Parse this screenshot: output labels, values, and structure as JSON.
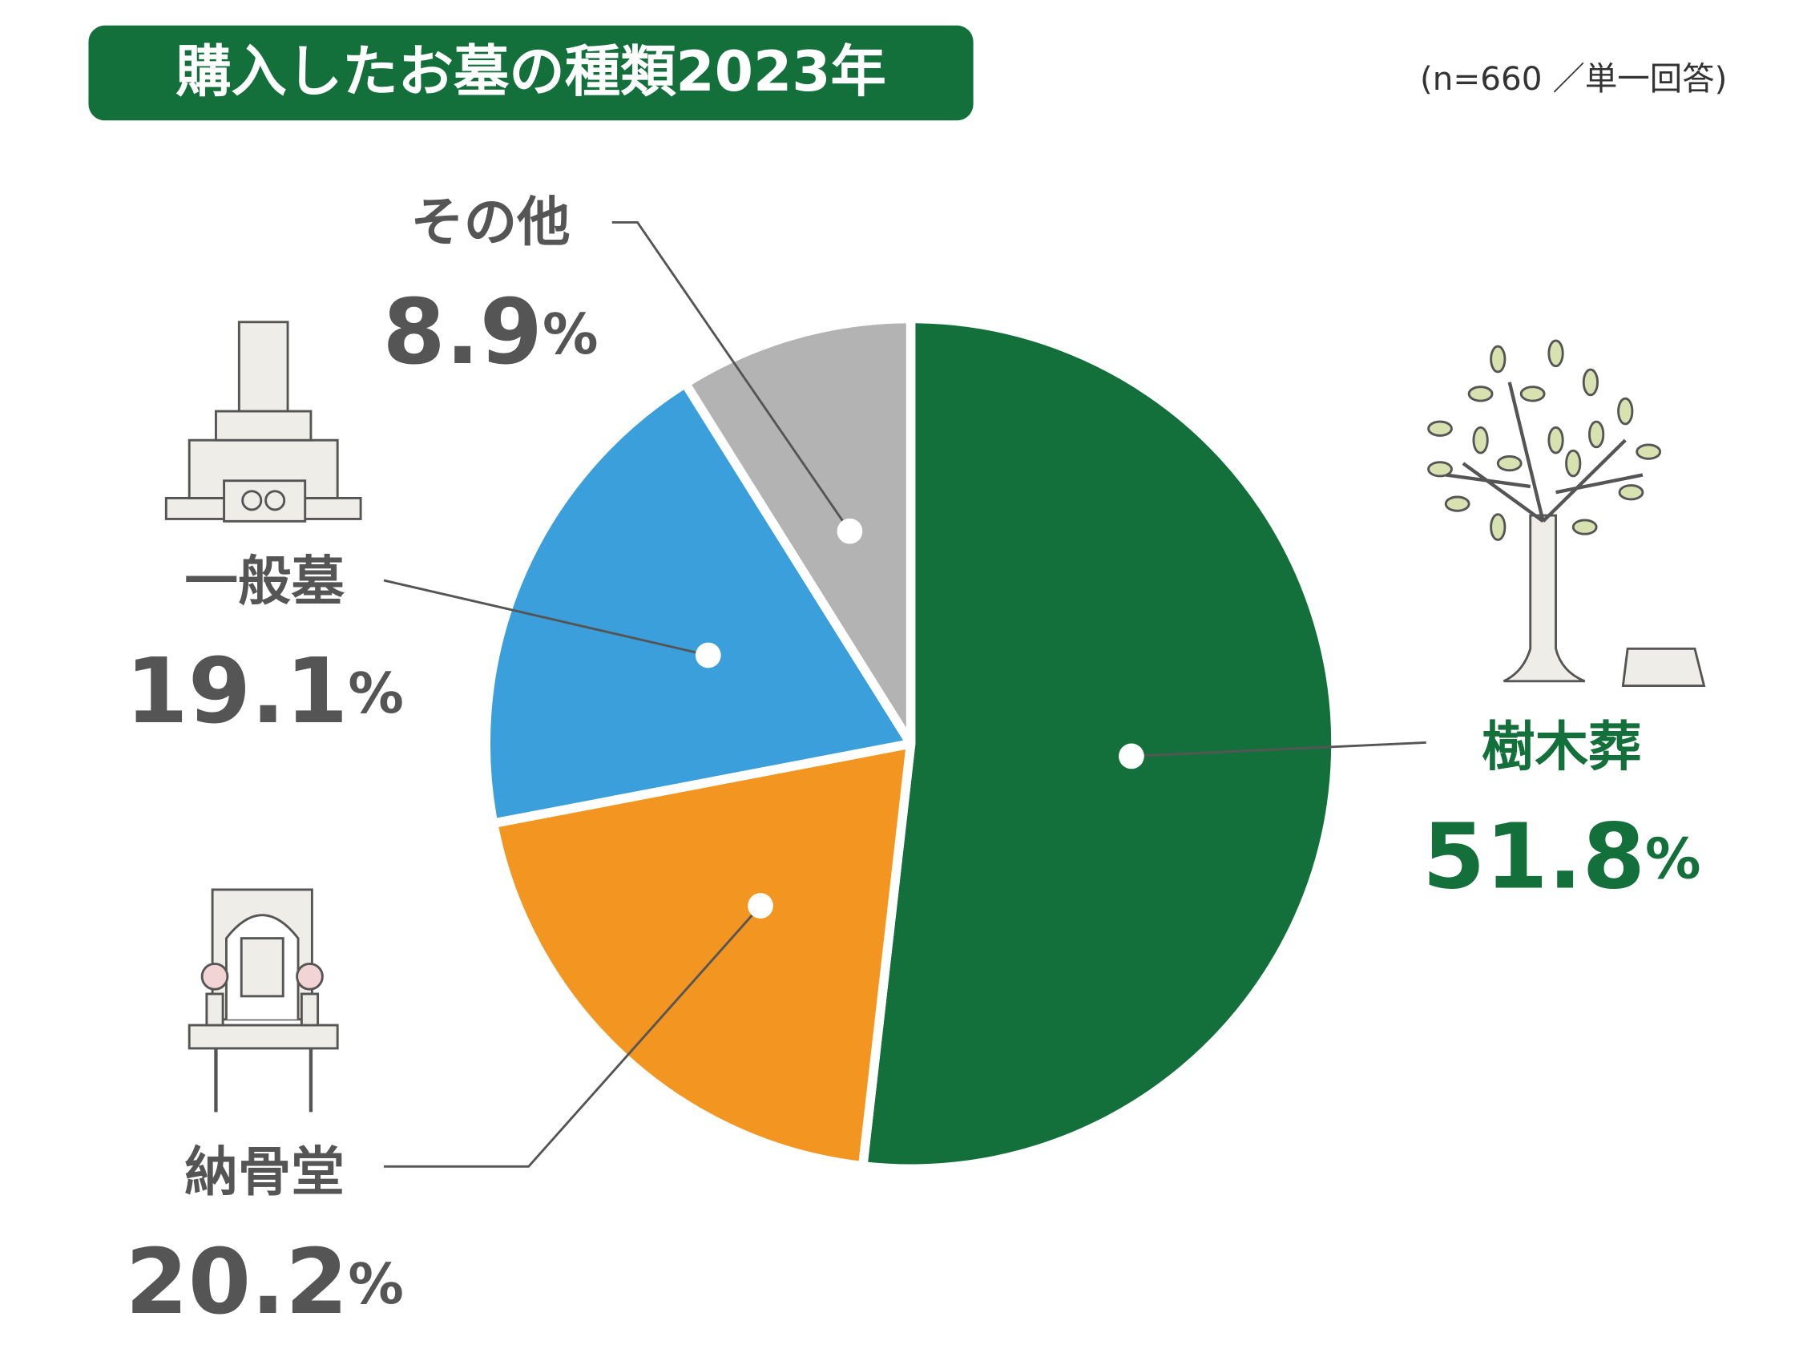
{
  "chart_data": {
    "type": "pie",
    "title": "購入したお墓の種類2023年",
    "subtitle": "(n=660 ／単一回答)",
    "categories": [
      "樹木葬",
      "納骨堂",
      "一般墓",
      "その他"
    ],
    "values": [
      51.8,
      20.2,
      19.1,
      8.9
    ],
    "value_labels": [
      "51.8%",
      "20.2%",
      "19.1%",
      "8.9%"
    ],
    "colors": [
      "#13703b",
      "#f39621",
      "#3a9fda",
      "#b3b3b3"
    ]
  }
}
